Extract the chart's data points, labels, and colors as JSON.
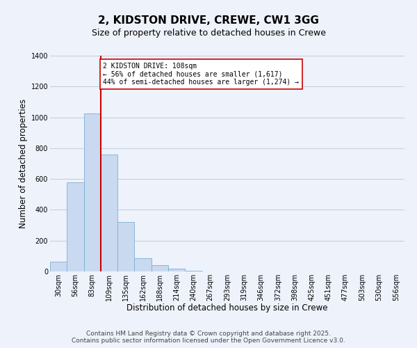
{
  "title": "2, KIDSTON DRIVE, CREWE, CW1 3GG",
  "subtitle": "Size of property relative to detached houses in Crewe",
  "xlabel": "Distribution of detached houses by size in Crewe",
  "ylabel": "Number of detached properties",
  "bar_labels": [
    "30sqm",
    "56sqm",
    "83sqm",
    "109sqm",
    "135sqm",
    "162sqm",
    "188sqm",
    "214sqm",
    "240sqm",
    "267sqm",
    "293sqm",
    "319sqm",
    "346sqm",
    "372sqm",
    "398sqm",
    "425sqm",
    "451sqm",
    "477sqm",
    "503sqm",
    "530sqm",
    "556sqm"
  ],
  "bar_values": [
    65,
    580,
    1025,
    760,
    320,
    88,
    40,
    18,
    5,
    0,
    0,
    0,
    0,
    0,
    0,
    0,
    0,
    0,
    0,
    0,
    0
  ],
  "bar_color": "#c9d9f0",
  "bar_edge_color": "#7bafd4",
  "ylim": [
    0,
    1400
  ],
  "yticks": [
    0,
    200,
    400,
    600,
    800,
    1000,
    1200,
    1400
  ],
  "vline_color": "#cc0000",
  "annotation_title": "2 KIDSTON DRIVE: 108sqm",
  "annotation_line1": "← 56% of detached houses are smaller (1,617)",
  "annotation_line2": "44% of semi-detached houses are larger (1,274) →",
  "annotation_box_color": "#ffffff",
  "annotation_box_edge_color": "#cc0000",
  "footer_line1": "Contains HM Land Registry data © Crown copyright and database right 2025.",
  "footer_line2": "Contains public sector information licensed under the Open Government Licence v3.0.",
  "background_color": "#eef2fb",
  "grid_color": "#c8d0e0",
  "title_fontsize": 11,
  "subtitle_fontsize": 9,
  "axis_label_fontsize": 8.5,
  "tick_fontsize": 7,
  "footer_fontsize": 6.5
}
